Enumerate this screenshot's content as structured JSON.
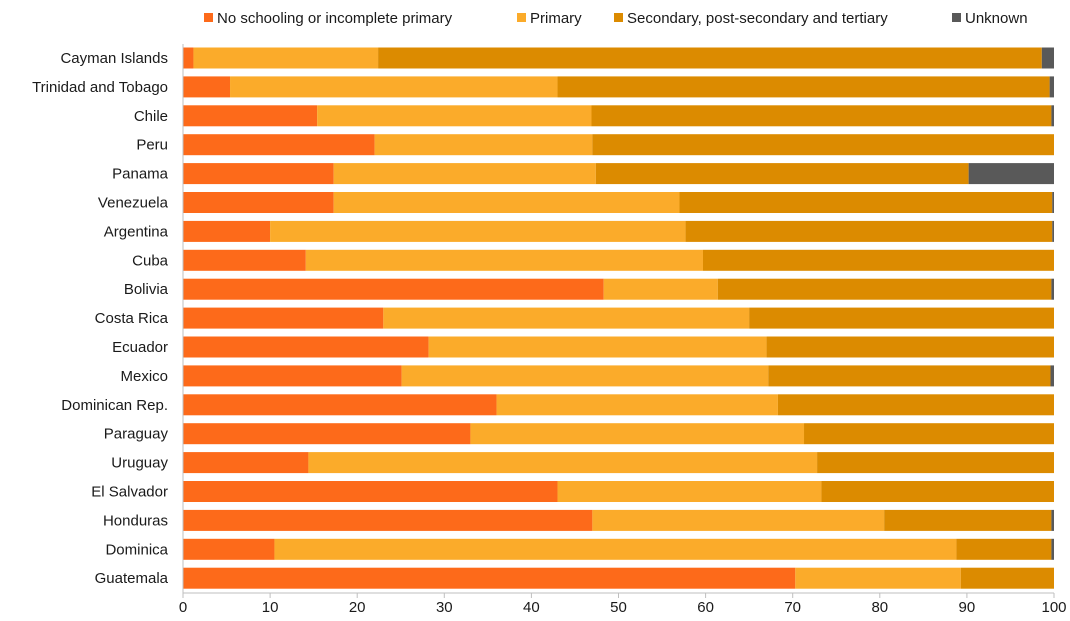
{
  "chart_data": {
    "type": "bar",
    "orientation": "horizontal",
    "stacked": true,
    "categories": [
      "Cayman Islands",
      "Trinidad and Tobago",
      "Chile",
      "Peru",
      "Panama",
      "Venezuela",
      "Argentina",
      "Cuba",
      "Bolivia",
      "Costa Rica",
      "Ecuador",
      "Mexico",
      "Dominican Rep.",
      "Paraguay",
      "Uruguay",
      "El Salvador",
      "Honduras",
      "Dominica",
      "Guatemala"
    ],
    "series": [
      {
        "name": "No schooling or incomplete primary",
        "color": "#fd6a1a",
        "values": [
          1.2,
          5.4,
          15.4,
          22.0,
          17.3,
          17.3,
          10.0,
          14.1,
          48.3,
          23.0,
          28.2,
          25.1,
          36.0,
          33.0,
          14.4,
          43.0,
          47.0,
          10.5,
          70.3
        ]
      },
      {
        "name": "Primary",
        "color": "#fbab2a",
        "values": [
          21.2,
          37.6,
          31.5,
          25.0,
          30.1,
          39.7,
          47.7,
          45.6,
          13.1,
          42.0,
          38.8,
          42.1,
          32.3,
          38.3,
          58.4,
          30.3,
          33.5,
          78.3,
          19.0
        ]
      },
      {
        "name": "Secondary, post-secondary and tertiary",
        "color": "#dc8b00",
        "values": [
          76.2,
          56.5,
          52.8,
          53.0,
          42.8,
          42.8,
          42.1,
          40.3,
          38.3,
          35.0,
          33.0,
          32.4,
          31.7,
          28.7,
          27.2,
          26.7,
          19.2,
          10.9,
          10.7
        ]
      },
      {
        "name": "Unknown",
        "color": "#595959",
        "values": [
          1.4,
          0.5,
          0.3,
          0.0,
          9.8,
          0.2,
          0.2,
          0.0,
          0.3,
          0.0,
          0.0,
          0.4,
          0.0,
          0.0,
          0.0,
          0.0,
          0.3,
          0.3,
          0.0
        ]
      }
    ],
    "xlim": [
      0,
      100
    ],
    "xticks": [
      0,
      10,
      20,
      30,
      40,
      50,
      60,
      70,
      80,
      90,
      100
    ],
    "xlabel": "",
    "ylabel": "",
    "title": "",
    "grid": false,
    "legend_position": "top"
  }
}
